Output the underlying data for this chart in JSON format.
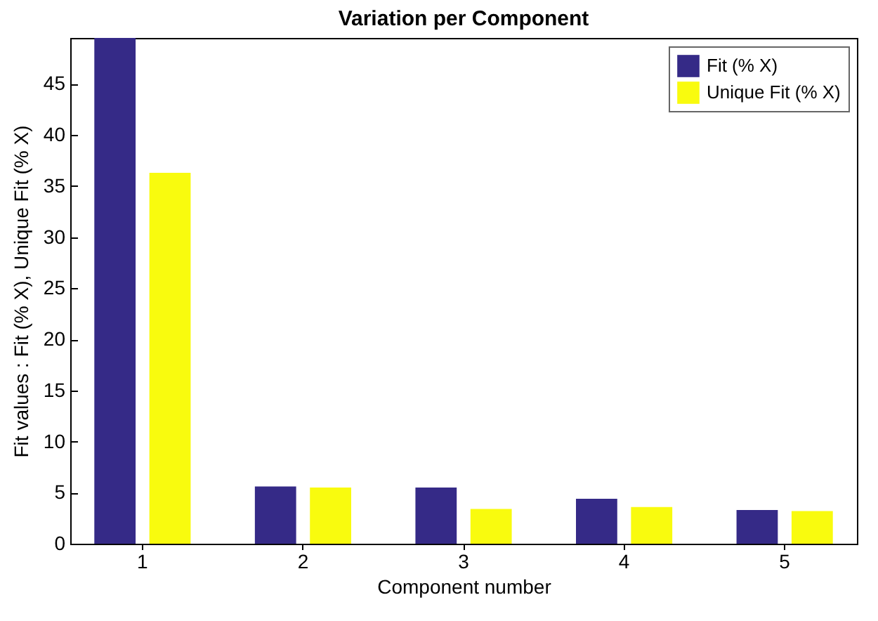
{
  "chart_data": {
    "type": "bar",
    "title": "Variation per Component",
    "xlabel": "Component number",
    "ylabel": "Fit values : Fit (% X), Unique Fit (% X)",
    "categories": [
      "1",
      "2",
      "3",
      "4",
      "5"
    ],
    "series": [
      {
        "name": "Fit (% X)",
        "color": "#352a87",
        "values": [
          49.5,
          5.6,
          5.5,
          4.4,
          3.3
        ]
      },
      {
        "name": "Unique Fit (% X)",
        "color": "#f9fb0e",
        "values": [
          36.3,
          5.5,
          3.4,
          3.6,
          3.2
        ]
      }
    ],
    "ylim": [
      0,
      49.5
    ],
    "yticks": [
      0,
      5,
      10,
      15,
      20,
      25,
      30,
      35,
      40,
      45
    ],
    "grid": false,
    "legend": "top right"
  }
}
